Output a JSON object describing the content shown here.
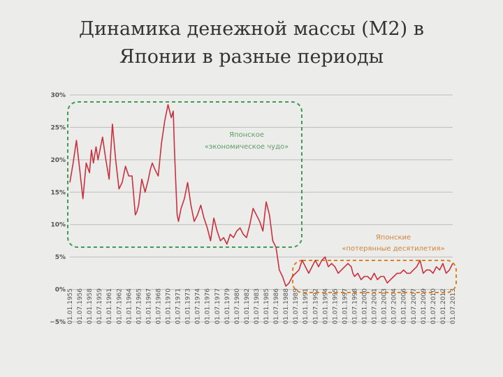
{
  "title": {
    "line1": "Динамика денежной массы (M2) в",
    "line2": "Японии в разные периоды"
  },
  "colors": {
    "line": "#c9303e",
    "grid": "#bdbdbd",
    "box1": "#3f9a52",
    "box2": "#e07f1d",
    "anno1": "#5c9e6a",
    "anno2": "#d0843a"
  },
  "annotations": {
    "miracle": {
      "line1": "Японское",
      "line2": "«экономическое чудо»"
    },
    "lost": {
      "line1": "Японские",
      "line2": "«потерянные десятилетия»"
    }
  },
  "chart_data": {
    "type": "line",
    "title": "Динамика денежной массы (M2) в Японии в разные периоды",
    "ylim": [
      -5,
      30
    ],
    "yticks": [
      "30%",
      "25%",
      "20%",
      "15%",
      "10%",
      "5%",
      "0%",
      "−5%"
    ],
    "ytick_values": [
      30,
      25,
      20,
      15,
      10,
      5,
      0,
      -5
    ],
    "grid": true,
    "x_tick_labels": [
      "01.01.1955",
      "01.07.1956",
      "01.01.1958",
      "01.07.1959",
      "01.01.1961",
      "01.07.1962",
      "01.01.1964",
      "01.07.1965",
      "01.01.1967",
      "01.07.1968",
      "01.01.1970",
      "01.07.1971",
      "01.01.1973",
      "01.07.1974",
      "01.01.1976",
      "01.07.1977",
      "01.01.1979",
      "01.07.1980",
      "01.01.1982",
      "01.07.1983",
      "01.01.1985",
      "01.07.1986",
      "01.01.1988",
      "01.07.1989",
      "01.01.1991",
      "01.07.1992",
      "01.01.1994",
      "01.07.1995",
      "01.01.1997",
      "01.07.1998",
      "01.01.2000",
      "01.07.2001",
      "01.01.2003",
      "01.07.2004",
      "01.01.2006",
      "01.07.2007",
      "01.01.2009",
      "01.07.2010",
      "01.01.2012",
      "01.07.2013"
    ],
    "x": [
      1955.0,
      1955.5,
      1956.0,
      1956.5,
      1957.0,
      1957.5,
      1958.0,
      1958.3,
      1958.6,
      1959.0,
      1959.3,
      1959.6,
      1960.0,
      1960.5,
      1961.0,
      1961.5,
      1962.0,
      1962.5,
      1963.0,
      1963.5,
      1964.0,
      1964.5,
      1965.0,
      1965.25,
      1965.5,
      1966.0,
      1966.5,
      1967.0,
      1967.3,
      1967.6,
      1968.0,
      1968.5,
      1969.0,
      1969.5,
      1970.0,
      1970.5,
      1970.8,
      1971.0,
      1971.2,
      1971.4,
      1971.6,
      1972.0,
      1972.5,
      1973.0,
      1973.5,
      1974.0,
      1974.5,
      1975.0,
      1975.5,
      1976.0,
      1976.5,
      1977.0,
      1977.5,
      1978.0,
      1978.5,
      1979.0,
      1979.5,
      1980.0,
      1980.5,
      1981.0,
      1981.5,
      1982.0,
      1982.5,
      1983.0,
      1983.5,
      1984.0,
      1984.5,
      1985.0,
      1985.5,
      1986.0,
      1986.5,
      1987.0,
      1987.5,
      1988.0,
      1988.5,
      1989.0,
      1989.5,
      1990.0,
      1990.5,
      1991.0,
      1991.5,
      1992.0,
      1992.5,
      1993.0,
      1993.5,
      1994.0,
      1994.5,
      1995.0,
      1995.5,
      1996.0,
      1996.5,
      1997.0,
      1997.5,
      1998.0,
      1998.25,
      1998.5,
      1999.0,
      1999.5,
      2000.0,
      2000.5,
      2001.0,
      2001.5,
      2002.0,
      2002.5,
      2003.0,
      2003.5,
      2004.0,
      2004.5,
      2005.0,
      2005.5,
      2006.0,
      2006.5,
      2007.0,
      2007.5,
      2008.0,
      2008.5,
      2009.0,
      2009.5,
      2010.0,
      2010.5,
      2011.0,
      2011.5,
      2012.0,
      2012.5,
      2013.0,
      2013.5
    ],
    "series": [
      {
        "values": [
          16.5,
          19.5,
          23.0,
          18.5,
          14.0,
          19.5,
          18.0,
          21.5,
          19.5,
          22.0,
          20.0,
          21.5,
          23.5,
          20.0,
          17.0,
          25.5,
          20.0,
          15.5,
          16.5,
          19.0,
          17.5,
          17.5,
          11.5,
          12.0,
          13.0,
          17.0,
          15.0,
          17.0,
          18.5,
          19.5,
          18.5,
          17.5,
          22.5,
          26.0,
          28.5,
          26.5,
          27.5,
          21.0,
          16.0,
          11.5,
          10.5,
          12.5,
          14.0,
          16.5,
          13.0,
          10.5,
          11.5,
          13.0,
          11.0,
          9.5,
          7.5,
          11.0,
          9.0,
          7.5,
          8.0,
          7.0,
          8.5,
          8.0,
          9.0,
          9.5,
          8.5,
          8.0,
          10.0,
          12.5,
          11.5,
          10.5,
          9.0,
          13.5,
          11.5,
          7.5,
          6.5,
          3.0,
          2.0,
          0.5,
          1.0,
          2.0,
          2.5,
          3.0,
          4.5,
          3.5,
          2.5,
          3.5,
          4.5,
          3.5,
          4.5,
          5.0,
          3.5,
          4.0,
          3.5,
          2.5,
          3.0,
          3.5,
          4.0,
          3.5,
          2.5,
          2.0,
          2.5,
          1.5,
          2.0,
          2.0,
          1.5,
          2.5,
          1.5,
          2.0,
          2.0,
          1.0,
          1.5,
          2.0,
          2.5,
          2.5,
          3.0,
          2.5,
          2.5,
          3.0,
          3.5,
          4.5,
          2.5,
          3.0,
          3.0,
          2.5,
          3.5,
          3.0,
          4.0,
          2.5,
          3.0,
          4.0
        ]
      }
    ]
  }
}
